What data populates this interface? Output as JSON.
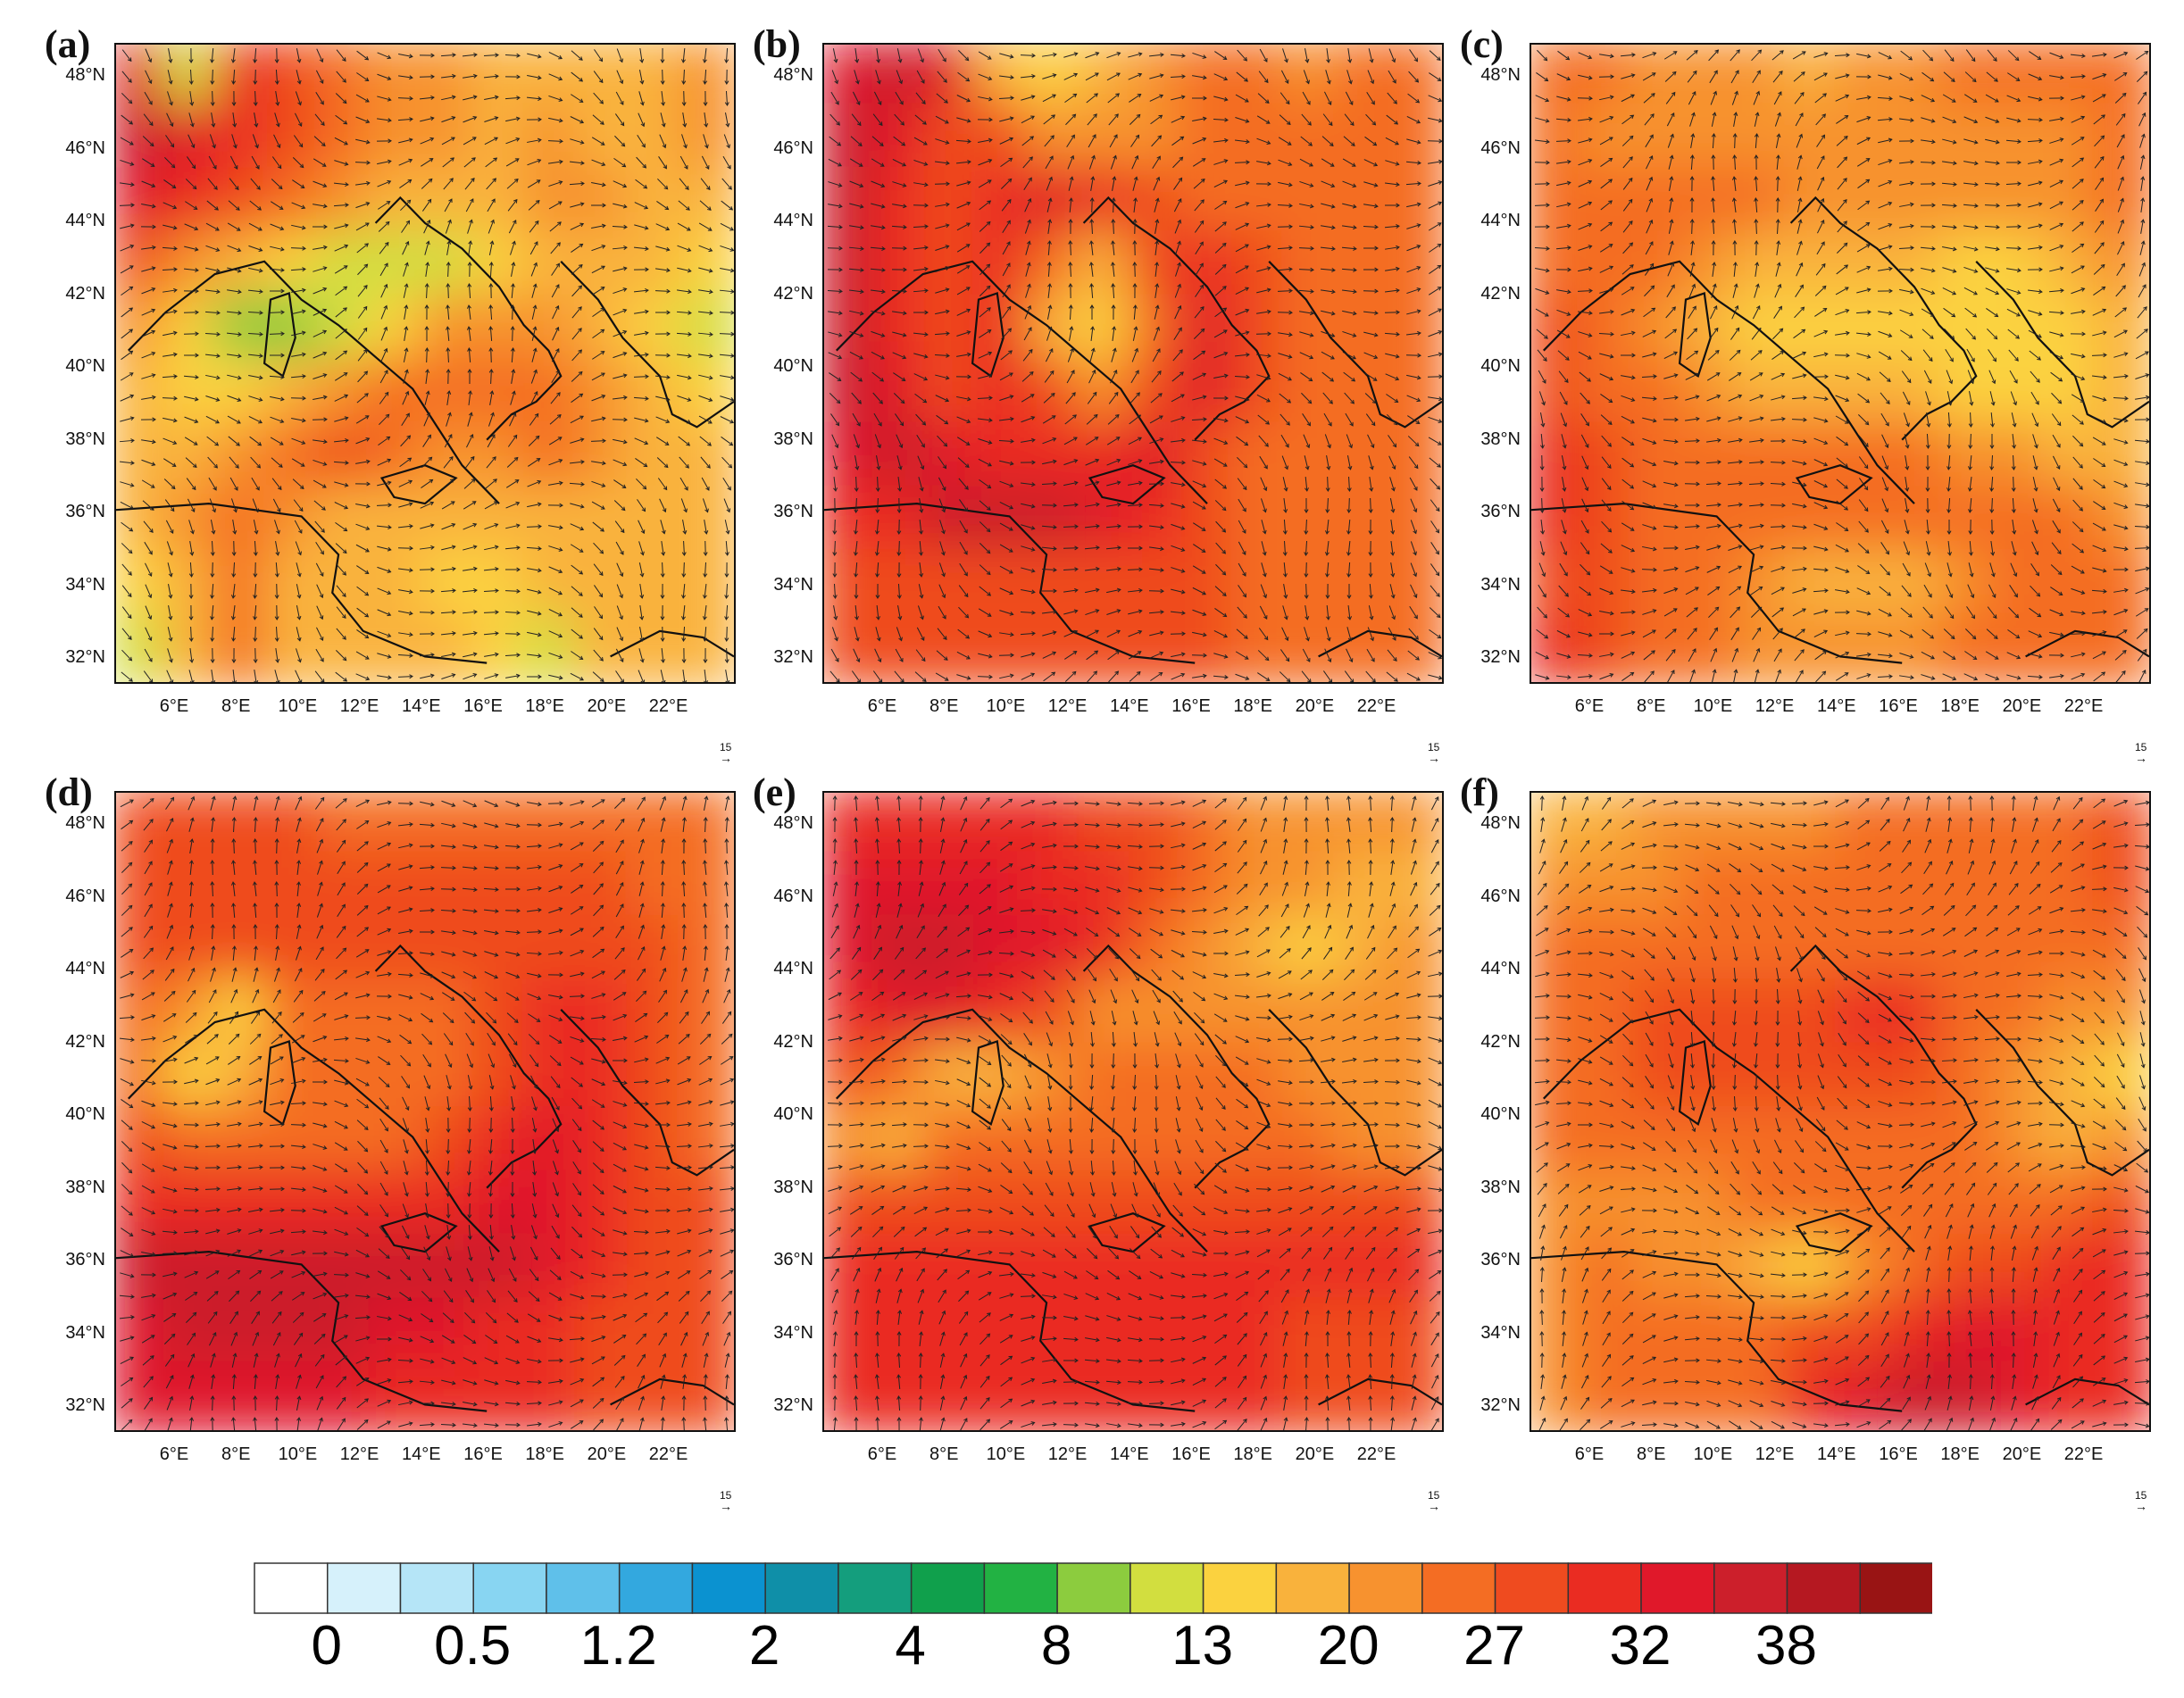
{
  "colorbar": {
    "colors": [
      "#ffffff",
      "#d6f1fb",
      "#b5e5f7",
      "#88d5f2",
      "#5fc0ea",
      "#33a8df",
      "#0b92d0",
      "#0f8fa8",
      "#149e7d",
      "#10a04c",
      "#22b243",
      "#8ccc3e",
      "#d2de3f",
      "#fbd23f",
      "#f9b23c",
      "#f7922f",
      "#f46d23",
      "#ef4b1f",
      "#ea2c22",
      "#e0182a",
      "#cc1f2b",
      "#b51821",
      "#991414"
    ],
    "labels": [
      "0",
      "0.5",
      "1.2",
      "2",
      "4",
      "8",
      "13",
      "20",
      "27",
      "32",
      "38"
    ]
  },
  "panels": [
    {
      "label": "(a)",
      "ref_vector": "15",
      "field": [
        [
          9,
          2,
          8,
          7,
          6,
          5,
          5,
          4,
          4,
          4,
          4,
          5
        ],
        [
          10,
          9,
          8,
          7,
          6,
          5,
          5,
          4,
          5,
          4,
          4,
          5
        ],
        [
          9,
          8,
          7,
          6,
          5,
          4,
          4,
          4,
          5,
          5,
          4,
          4
        ],
        [
          7,
          5,
          4,
          3,
          2,
          2,
          2,
          3,
          4,
          4,
          4,
          3
        ],
        [
          5,
          3,
          1,
          1,
          2,
          3,
          5,
          5,
          5,
          4,
          3,
          2
        ],
        [
          4,
          3,
          3,
          4,
          5,
          6,
          6,
          6,
          6,
          5,
          4,
          3
        ],
        [
          4,
          4,
          5,
          6,
          7,
          6,
          5,
          5,
          6,
          5,
          4,
          4
        ],
        [
          4,
          5,
          6,
          5,
          4,
          4,
          4,
          4,
          4,
          4,
          4,
          4
        ],
        [
          3,
          4,
          6,
          4,
          4,
          4,
          3,
          3,
          4,
          4,
          4,
          4
        ],
        [
          2,
          4,
          6,
          4,
          4,
          4,
          4,
          3,
          2,
          4,
          4,
          4
        ]
      ]
    },
    {
      "label": "(b)",
      "ref_vector": "15",
      "field": [
        [
          9,
          10,
          9,
          4,
          3,
          4,
          5,
          6,
          6,
          5,
          6,
          6
        ],
        [
          10,
          9,
          7,
          7,
          5,
          5,
          5,
          6,
          6,
          6,
          6,
          6
        ],
        [
          10,
          8,
          7,
          8,
          9,
          8,
          7,
          6,
          6,
          6,
          6,
          6
        ],
        [
          10,
          8,
          7,
          8,
          6,
          4,
          7,
          8,
          7,
          6,
          6,
          6
        ],
        [
          10,
          8,
          7,
          8,
          4,
          3,
          6,
          9,
          7,
          6,
          6,
          6
        ],
        [
          10,
          9,
          7,
          8,
          7,
          5,
          7,
          9,
          7,
          6,
          6,
          6
        ],
        [
          9,
          10,
          9,
          8,
          8,
          8,
          9,
          7,
          6,
          6,
          6,
          6
        ],
        [
          8,
          8,
          10,
          10,
          10,
          9,
          8,
          7,
          6,
          6,
          6,
          6
        ],
        [
          7,
          7,
          7,
          7,
          7,
          7,
          7,
          7,
          6,
          6,
          6,
          6
        ],
        [
          7,
          7,
          7,
          7,
          7,
          7,
          7,
          7,
          6,
          6,
          6,
          6
        ]
      ]
    },
    {
      "label": "(c)",
      "ref_vector": "15",
      "field": [
        [
          6,
          6,
          5,
          5,
          5,
          4,
          5,
          5,
          6,
          6,
          6,
          6
        ],
        [
          6,
          5,
          5,
          5,
          5,
          5,
          5,
          5,
          5,
          5,
          5,
          6
        ],
        [
          6,
          6,
          6,
          6,
          6,
          5,
          5,
          5,
          5,
          5,
          5,
          6
        ],
        [
          6,
          6,
          6,
          5,
          4,
          4,
          4,
          4,
          3,
          3,
          4,
          5
        ],
        [
          7,
          6,
          5,
          4,
          3,
          3,
          3,
          3,
          3,
          3,
          3,
          4
        ],
        [
          7,
          6,
          6,
          5,
          4,
          4,
          4,
          4,
          3,
          3,
          3,
          4
        ],
        [
          8,
          7,
          6,
          6,
          6,
          6,
          6,
          6,
          5,
          5,
          4,
          4
        ],
        [
          8,
          7,
          6,
          6,
          6,
          6,
          6,
          6,
          6,
          6,
          6,
          5
        ],
        [
          7,
          7,
          6,
          6,
          5,
          4,
          4,
          4,
          5,
          6,
          6,
          6
        ],
        [
          8,
          7,
          6,
          6,
          5,
          5,
          5,
          5,
          6,
          6,
          6,
          6
        ]
      ]
    },
    {
      "label": "(d)",
      "ref_vector": "15",
      "field": [
        [
          7,
          7,
          7,
          7,
          6,
          6,
          6,
          6,
          6,
          6,
          6,
          6
        ],
        [
          7,
          7,
          7,
          7,
          7,
          7,
          7,
          7,
          7,
          7,
          6,
          6
        ],
        [
          7,
          7,
          7,
          7,
          7,
          7,
          7,
          7,
          7,
          7,
          7,
          6
        ],
        [
          6,
          5,
          3,
          6,
          6,
          6,
          6,
          7,
          8,
          8,
          7,
          6
        ],
        [
          6,
          3,
          4,
          6,
          6,
          6,
          6,
          7,
          8,
          8,
          7,
          6
        ],
        [
          7,
          6,
          6,
          6,
          6,
          6,
          7,
          8,
          9,
          8,
          7,
          6
        ],
        [
          8,
          8,
          8,
          8,
          8,
          8,
          8,
          9,
          9,
          8,
          7,
          7
        ],
        [
          10,
          10,
          10,
          10,
          10,
          10,
          10,
          10,
          9,
          8,
          7,
          7
        ],
        [
          9,
          10,
          10,
          10,
          10,
          9,
          9,
          8,
          8,
          7,
          7,
          7
        ],
        [
          9,
          9,
          9,
          9,
          9,
          8,
          8,
          8,
          8,
          7,
          7,
          7
        ]
      ]
    },
    {
      "label": "(e)",
      "ref_vector": "15",
      "field": [
        [
          8,
          8,
          8,
          8,
          8,
          7,
          7,
          6,
          5,
          5,
          5,
          5
        ],
        [
          9,
          9,
          9,
          9,
          8,
          8,
          7,
          6,
          5,
          5,
          4,
          4
        ],
        [
          9,
          10,
          10,
          9,
          9,
          8,
          6,
          5,
          4,
          3,
          4,
          5
        ],
        [
          8,
          9,
          9,
          8,
          7,
          5,
          5,
          5,
          5,
          5,
          5,
          5
        ],
        [
          7,
          6,
          4,
          4,
          5,
          6,
          6,
          6,
          6,
          5,
          5,
          5
        ],
        [
          5,
          4,
          6,
          6,
          6,
          6,
          6,
          6,
          6,
          6,
          5,
          5
        ],
        [
          7,
          7,
          7,
          7,
          7,
          7,
          7,
          7,
          7,
          7,
          7,
          7
        ],
        [
          8,
          8,
          8,
          8,
          8,
          8,
          8,
          8,
          8,
          8,
          8,
          8
        ],
        [
          8,
          8,
          8,
          8,
          8,
          8,
          8,
          8,
          8,
          7,
          7,
          7
        ],
        [
          8,
          8,
          8,
          8,
          8,
          8,
          8,
          8,
          8,
          7,
          7,
          7
        ]
      ]
    },
    {
      "label": "(f)",
      "ref_vector": "15",
      "field": [
        [
          4,
          4,
          5,
          5,
          5,
          5,
          6,
          6,
          6,
          6,
          6,
          7
        ],
        [
          5,
          5,
          5,
          6,
          6,
          6,
          6,
          6,
          6,
          6,
          6,
          7
        ],
        [
          6,
          6,
          6,
          6,
          6,
          6,
          6,
          6,
          6,
          6,
          6,
          6
        ],
        [
          6,
          6,
          7,
          7,
          7,
          7,
          8,
          8,
          6,
          6,
          5,
          5
        ],
        [
          6,
          6,
          7,
          7,
          7,
          7,
          7,
          7,
          6,
          5,
          4,
          3
        ],
        [
          6,
          6,
          6,
          6,
          6,
          6,
          6,
          6,
          6,
          5,
          4,
          5
        ],
        [
          5,
          5,
          5,
          5,
          6,
          6,
          6,
          6,
          6,
          6,
          6,
          7
        ],
        [
          5,
          6,
          5,
          5,
          4,
          3,
          5,
          6,
          7,
          7,
          8,
          8
        ],
        [
          5,
          6,
          6,
          6,
          6,
          7,
          7,
          8,
          9,
          9,
          8,
          8
        ],
        [
          5,
          6,
          6,
          6,
          6,
          8,
          9,
          10,
          10,
          9,
          8,
          8
        ]
      ]
    }
  ],
  "lat_ticks": [
    "48°N",
    "46°N",
    "44°N",
    "42°N",
    "40°N",
    "38°N",
    "36°N",
    "34°N",
    "32°N"
  ],
  "lon_ticks": [
    "6°E",
    "8°E",
    "10°E",
    "12°E",
    "14°E",
    "16°E",
    "18°E",
    "20°E",
    "22°E"
  ]
}
